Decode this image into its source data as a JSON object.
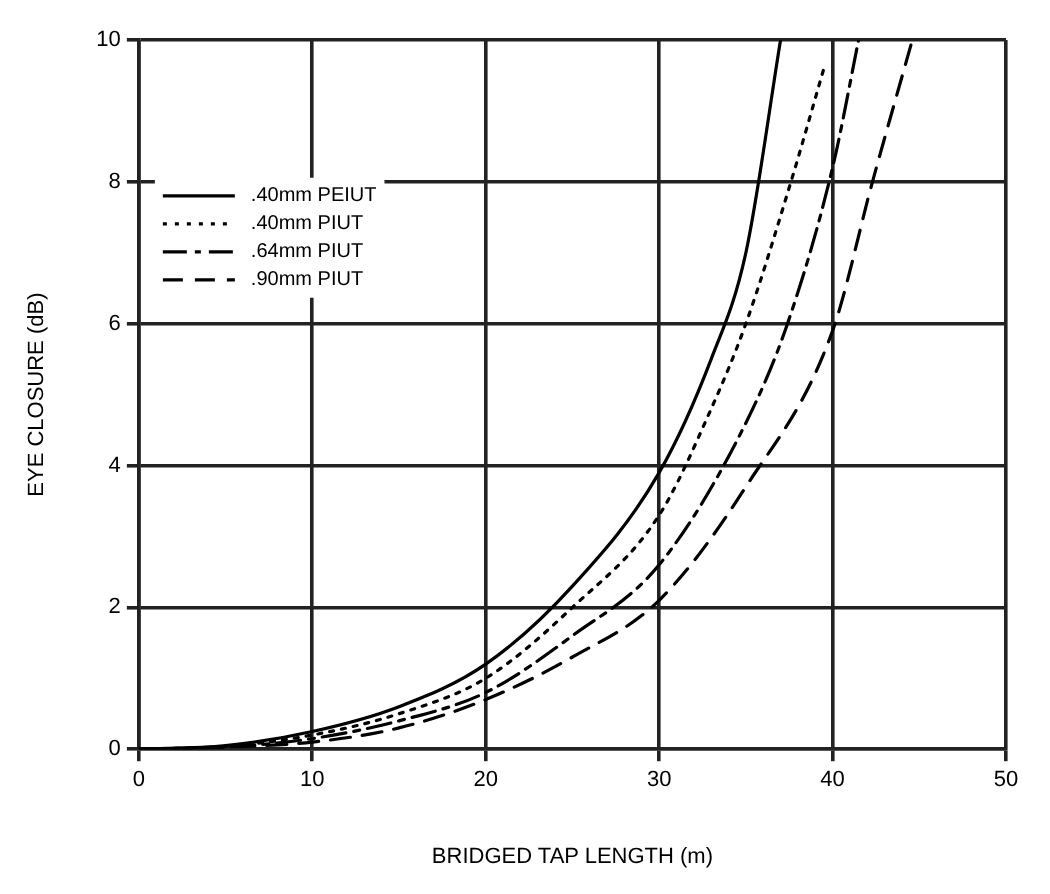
{
  "chart_data": {
    "type": "line",
    "xlabel": "BRIDGED TAP LENGTH (m)",
    "ylabel": "EYE CLOSURE (dB)",
    "xlim": [
      0,
      50
    ],
    "xticks": [
      0,
      10,
      20,
      30,
      40,
      50
    ],
    "ylim": [
      0,
      10
    ],
    "yticks": [
      0,
      2,
      4,
      6,
      8,
      10
    ],
    "grid": true,
    "legend": "top left",
    "marker": "none",
    "series": [
      {
        "name": ".40mm PEIUT",
        "color": "#000000",
        "line_style": "solid",
        "x": [
          0,
          5,
          10,
          15,
          20,
          25,
          30,
          33,
          35,
          37
        ],
        "values": [
          0,
          0.05,
          0.25,
          0.6,
          1.2,
          2.3,
          3.9,
          5.5,
          7.0,
          10
        ]
      },
      {
        "name": ".40mm PIUT",
        "color": "#000000",
        "line_style": "dotted",
        "x": [
          0,
          5,
          10,
          15,
          20,
          25,
          30,
          33,
          35,
          37.6,
          39.5
        ],
        "values": [
          0,
          0.04,
          0.2,
          0.5,
          1.0,
          2.0,
          3.3,
          4.8,
          6.0,
          8.0,
          9.6
        ]
      },
      {
        "name": ".64mm PIUT",
        "color": "#000000",
        "line_style": "dashdot",
        "x": [
          0,
          5,
          10,
          15,
          20,
          25,
          30,
          35,
          37.4,
          40,
          41.5
        ],
        "values": [
          0,
          0.03,
          0.15,
          0.4,
          0.8,
          1.6,
          2.6,
          4.6,
          6.0,
          8.2,
          10
        ]
      },
      {
        "name": ".90mm PIUT",
        "color": "#000000",
        "line_style": "dashed",
        "x": [
          0,
          5,
          10,
          15,
          20,
          25,
          30,
          35,
          40,
          42.3,
          44.6
        ],
        "values": [
          0,
          0.03,
          0.1,
          0.3,
          0.7,
          1.3,
          2.1,
          3.7,
          5.9,
          8.0,
          10
        ]
      }
    ]
  }
}
